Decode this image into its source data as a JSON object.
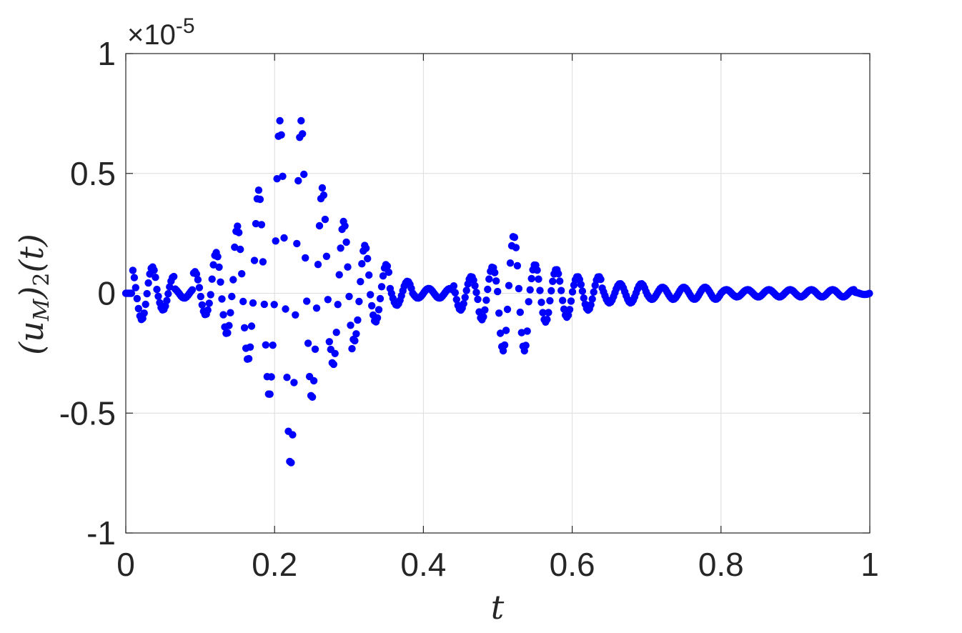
{
  "chart_data": {
    "type": "scatter",
    "xlabel": "t",
    "ylabel": "(u_M)_2(t)",
    "ylabel_parts": {
      "open": "(",
      "base": "u",
      "sub1": "M",
      "close": ")",
      "sub2": "2",
      "tail": "(t)"
    },
    "exponent": {
      "times": "×10",
      "power": "-5"
    },
    "xlim": [
      0,
      1
    ],
    "ylim": [
      -1,
      1
    ],
    "y_scale_factor": 1e-05,
    "xticks": [
      0,
      0.2,
      0.4,
      0.6,
      0.8,
      1
    ],
    "xtick_labels": [
      "0",
      "0.2",
      "0.4",
      "0.6",
      "0.8",
      "1"
    ],
    "yticks": [
      -1,
      -0.5,
      0,
      0.5,
      1
    ],
    "ytick_labels": [
      "-1",
      "-0.5",
      "0",
      "0.5",
      "1"
    ],
    "grid": true,
    "color": "#0000ff",
    "marker": "filled-circle",
    "segments": [
      {
        "t0": 0.0,
        "t1": 0.008,
        "amp": 0.0,
        "freq": 35
      },
      {
        "t0": 0.008,
        "t1": 0.04,
        "amp": 0.11,
        "freq": 35
      },
      {
        "t0": 0.04,
        "t1": 0.065,
        "amp": 0.07,
        "freq": 35
      },
      {
        "t0": 0.065,
        "t1": 0.09,
        "amp": 0.02,
        "freq": 35
      },
      {
        "t0": 0.09,
        "t1": 0.115,
        "amp": 0.09,
        "freq": 35
      },
      {
        "t0": 0.115,
        "t1": 0.145,
        "amp": 0.17,
        "freq": 35
      },
      {
        "t0": 0.145,
        "t1": 0.17,
        "amp": 0.28,
        "freq": 35
      },
      {
        "t0": 0.17,
        "t1": 0.2,
        "amp": 0.43,
        "freq": 35
      },
      {
        "t0": 0.2,
        "t1": 0.24,
        "amp": 0.72,
        "freq": 35
      },
      {
        "t0": 0.24,
        "t1": 0.275,
        "amp": 0.44,
        "freq": 35
      },
      {
        "t0": 0.275,
        "t1": 0.305,
        "amp": 0.3,
        "freq": 35
      },
      {
        "t0": 0.305,
        "t1": 0.33,
        "amp": 0.2,
        "freq": 35
      },
      {
        "t0": 0.33,
        "t1": 0.355,
        "amp": 0.12,
        "freq": 35
      },
      {
        "t0": 0.355,
        "t1": 0.385,
        "amp": 0.05,
        "freq": 35
      },
      {
        "t0": 0.385,
        "t1": 0.44,
        "amp": 0.02,
        "freq": 35
      },
      {
        "t0": 0.44,
        "t1": 0.475,
        "amp": 0.07,
        "freq": 35
      },
      {
        "t0": 0.475,
        "t1": 0.5,
        "amp": 0.11,
        "freq": 35
      },
      {
        "t0": 0.5,
        "t1": 0.54,
        "amp": 0.24,
        "freq": 35
      },
      {
        "t0": 0.54,
        "t1": 0.57,
        "amp": 0.12,
        "freq": 35
      },
      {
        "t0": 0.57,
        "t1": 0.6,
        "amp": 0.1,
        "freq": 35
      },
      {
        "t0": 0.6,
        "t1": 0.64,
        "amp": 0.07,
        "freq": 35
      },
      {
        "t0": 0.64,
        "t1": 0.7,
        "amp": 0.04,
        "freq": 35
      },
      {
        "t0": 0.7,
        "t1": 0.8,
        "amp": 0.025,
        "freq": 35
      },
      {
        "t0": 0.8,
        "t1": 0.98,
        "amp": 0.015,
        "freq": 35
      },
      {
        "t0": 0.98,
        "t1": 1.0,
        "amp": 0.005,
        "freq": 35
      }
    ],
    "sample_step": 0.0019
  }
}
